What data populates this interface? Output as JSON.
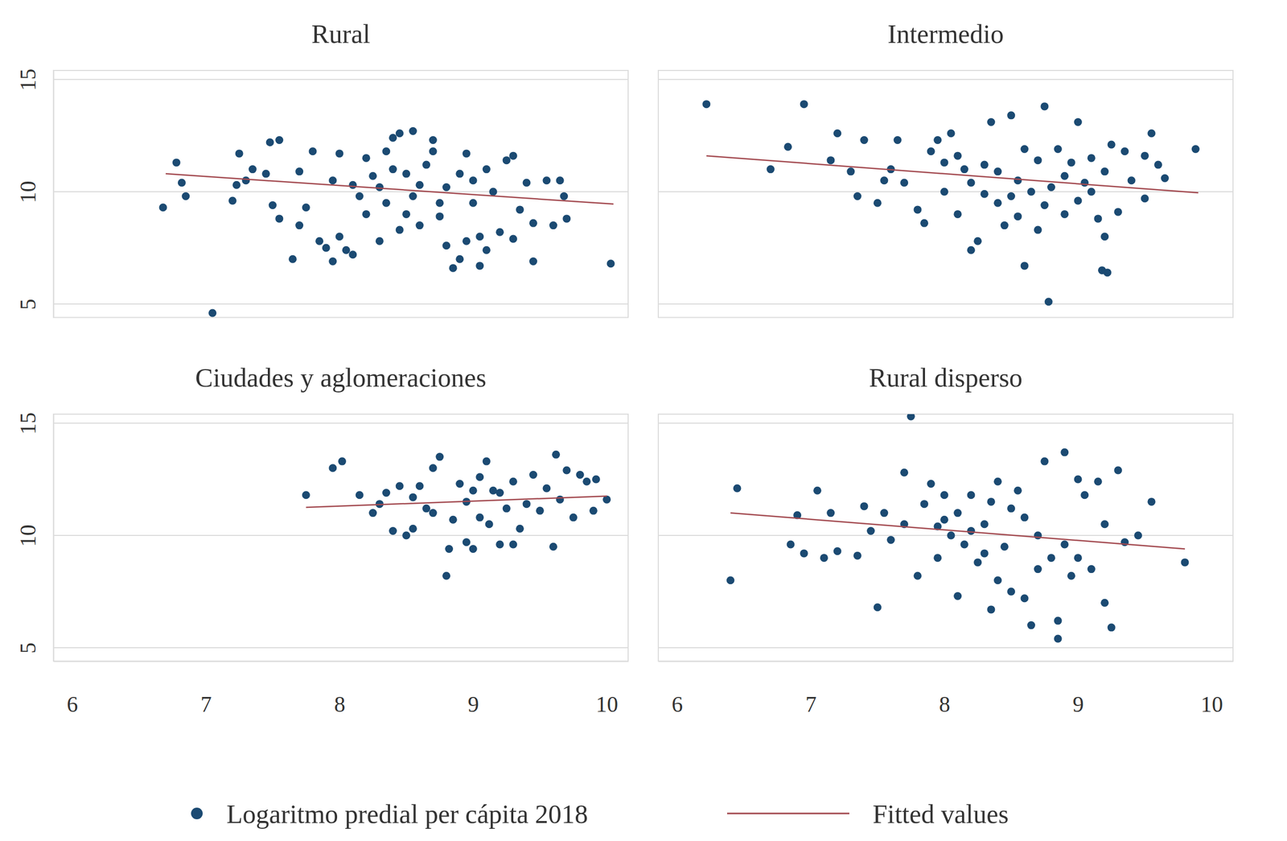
{
  "chart_data": {
    "type": "scatter",
    "grid": true,
    "legend": "bottom",
    "xlim": [
      5.86,
      10.16
    ],
    "xticks": [
      6,
      7,
      8,
      9,
      10
    ],
    "ylim": [
      4.4,
      15.4
    ],
    "yticks": [
      5,
      10,
      15
    ],
    "series": [
      {
        "name": "Logaritmo predial per cápita 2018",
        "color": "#1b4a72",
        "marker": "circle"
      },
      {
        "name": "Fitted values",
        "color": "#a34a50",
        "line_style": "solid"
      }
    ],
    "panels": [
      {
        "title": "Rural",
        "x": [
          6.68,
          6.78,
          6.82,
          6.85,
          7.05,
          7.2,
          7.23,
          7.25,
          7.3,
          7.35,
          7.45,
          7.48,
          7.55,
          7.5,
          7.55,
          7.65,
          7.7,
          7.75,
          7.8,
          7.85,
          7.9,
          7.95,
          8.0,
          8.05,
          8.1,
          8.0,
          8.2,
          8.2,
          8.3,
          8.3,
          8.4,
          8.4,
          8.45,
          8.5,
          8.55,
          8.6,
          8.6,
          8.7,
          8.7,
          8.75,
          8.8,
          8.85,
          8.9,
          8.9,
          8.95,
          9.0,
          9.05,
          9.05,
          9.1,
          9.1,
          9.15,
          9.2,
          9.25,
          9.3,
          9.3,
          9.35,
          9.4,
          9.45,
          9.45,
          9.55,
          9.6,
          9.65,
          9.68,
          9.7,
          10.03,
          8.35,
          8.5,
          8.65,
          8.8,
          8.25,
          7.95,
          8.15,
          8.55,
          8.45,
          8.75,
          9.0,
          8.1,
          7.7,
          8.95,
          8.35
        ],
        "values": [
          9.3,
          11.3,
          10.4,
          9.8,
          4.6,
          9.6,
          10.3,
          11.7,
          10.5,
          11.0,
          10.8,
          12.2,
          12.3,
          9.4,
          8.8,
          7.0,
          8.5,
          9.3,
          11.8,
          7.8,
          7.5,
          6.9,
          8.0,
          7.4,
          7.2,
          11.7,
          9.0,
          11.5,
          10.2,
          7.8,
          11.0,
          12.4,
          12.6,
          9.0,
          12.7,
          10.3,
          8.5,
          11.8,
          12.3,
          9.5,
          7.6,
          6.6,
          7.0,
          10.8,
          7.8,
          9.5,
          6.7,
          8.0,
          11.0,
          7.4,
          10.0,
          8.2,
          11.4,
          11.6,
          7.9,
          9.2,
          10.4,
          6.9,
          8.6,
          10.5,
          8.5,
          10.5,
          9.8,
          8.8,
          6.8,
          9.5,
          10.8,
          11.2,
          10.2,
          10.7,
          10.5,
          9.8,
          9.8,
          8.3,
          8.9,
          10.5,
          10.3,
          10.9,
          11.7,
          11.8
        ],
        "fit_x": [
          6.7,
          10.05
        ],
        "fit_values": [
          10.8,
          9.45
        ]
      },
      {
        "title": "Intermedio",
        "x": [
          6.22,
          6.7,
          6.83,
          6.95,
          7.15,
          7.2,
          7.3,
          7.4,
          7.35,
          7.5,
          7.55,
          7.6,
          7.65,
          7.8,
          7.85,
          7.9,
          7.95,
          8.0,
          8.05,
          8.1,
          8.15,
          8.2,
          8.25,
          8.3,
          8.35,
          8.4,
          8.45,
          8.5,
          8.55,
          8.6,
          8.6,
          8.7,
          8.75,
          8.78,
          8.8,
          8.85,
          8.9,
          8.95,
          9.0,
          9.05,
          9.1,
          9.15,
          9.18,
          9.22,
          9.2,
          9.25,
          9.3,
          9.35,
          9.4,
          9.5,
          9.5,
          9.55,
          9.6,
          9.65,
          9.88,
          8.2,
          8.4,
          8.5,
          8.65,
          8.7,
          8.9,
          8.3,
          8.1,
          9.0,
          9.2,
          7.7,
          8.55,
          8.0,
          8.75,
          9.1
        ],
        "values": [
          13.9,
          11.0,
          12.0,
          13.9,
          11.4,
          12.6,
          10.9,
          12.3,
          9.8,
          9.5,
          10.5,
          11.0,
          12.3,
          9.2,
          8.6,
          11.8,
          12.3,
          10.0,
          12.6,
          9.0,
          11.0,
          7.4,
          7.8,
          11.2,
          13.1,
          9.5,
          8.5,
          13.4,
          10.5,
          6.7,
          11.9,
          8.3,
          13.8,
          5.1,
          10.2,
          11.9,
          9.0,
          11.3,
          13.1,
          10.4,
          11.5,
          8.8,
          6.5,
          6.4,
          8.0,
          12.1,
          9.1,
          11.8,
          10.5,
          9.7,
          11.6,
          12.6,
          11.2,
          10.6,
          11.9,
          10.4,
          10.9,
          9.8,
          10.0,
          11.4,
          10.7,
          9.9,
          11.6,
          9.6,
          10.9,
          10.4,
          8.9,
          11.3,
          9.4,
          10.0
        ],
        "fit_x": [
          6.22,
          9.9
        ],
        "fit_values": [
          11.6,
          9.95
        ]
      },
      {
        "title": "Ciudades y aglomeraciones",
        "x": [
          7.75,
          7.95,
          8.02,
          8.15,
          8.25,
          8.3,
          8.4,
          8.45,
          8.5,
          8.55,
          8.6,
          8.65,
          8.7,
          8.75,
          8.8,
          8.82,
          8.85,
          8.9,
          8.95,
          9.0,
          9.05,
          9.1,
          9.12,
          9.15,
          9.2,
          9.25,
          9.3,
          9.3,
          9.4,
          9.45,
          9.5,
          9.6,
          9.62,
          9.65,
          9.7,
          9.75,
          9.8,
          9.85,
          9.9,
          9.92,
          10.0,
          8.7,
          8.95,
          9.05,
          9.2,
          9.35,
          8.55,
          9.55,
          8.35,
          9.0
        ],
        "values": [
          11.8,
          13.0,
          13.3,
          11.8,
          11.0,
          11.4,
          10.2,
          12.2,
          10.0,
          10.3,
          12.2,
          11.2,
          13.0,
          13.5,
          8.2,
          9.4,
          10.7,
          12.3,
          9.7,
          9.4,
          12.6,
          13.3,
          10.5,
          12.0,
          9.6,
          11.2,
          9.6,
          12.4,
          11.4,
          12.7,
          11.1,
          9.5,
          13.6,
          11.6,
          12.9,
          10.8,
          12.7,
          12.4,
          11.1,
          12.5,
          11.6,
          11.0,
          11.5,
          10.8,
          11.9,
          10.3,
          11.7,
          12.1,
          11.9,
          12.0
        ],
        "fit_x": [
          7.75,
          10.0
        ],
        "fit_values": [
          11.25,
          11.75
        ]
      },
      {
        "title": "Rural disperso",
        "x": [
          6.4,
          6.45,
          6.85,
          6.9,
          6.95,
          7.05,
          7.1,
          7.15,
          7.2,
          7.35,
          7.4,
          7.45,
          7.5,
          7.55,
          7.6,
          7.7,
          7.75,
          7.8,
          7.85,
          7.9,
          7.95,
          8.0,
          8.05,
          8.1,
          8.15,
          8.2,
          8.25,
          8.3,
          8.35,
          8.4,
          8.4,
          8.5,
          8.55,
          8.6,
          8.65,
          8.7,
          8.75,
          8.8,
          8.85,
          8.85,
          8.9,
          8.95,
          9.0,
          9.05,
          9.1,
          9.15,
          9.2,
          9.2,
          9.25,
          9.3,
          9.35,
          9.45,
          9.55,
          9.8,
          8.0,
          8.2,
          8.45,
          8.6,
          8.3,
          8.9,
          8.1,
          7.95,
          8.5,
          8.7,
          9.0,
          7.7,
          8.35
        ],
        "values": [
          8.0,
          12.1,
          9.6,
          10.9,
          9.2,
          12.0,
          9.0,
          11.0,
          9.3,
          9.1,
          11.3,
          10.2,
          6.8,
          11.0,
          9.8,
          12.8,
          15.3,
          8.2,
          11.4,
          12.3,
          9.0,
          11.8,
          10.0,
          7.3,
          9.6,
          11.8,
          8.8,
          10.5,
          6.7,
          8.0,
          12.4,
          7.5,
          12.0,
          7.2,
          6.0,
          10.0,
          13.3,
          9.0,
          6.2,
          5.4,
          13.7,
          8.2,
          12.5,
          11.8,
          8.5,
          12.4,
          10.5,
          7.0,
          5.9,
          12.9,
          9.7,
          10.0,
          11.5,
          8.8,
          10.7,
          10.2,
          9.5,
          10.8,
          9.2,
          9.6,
          11.0,
          10.4,
          11.2,
          8.5,
          9.0,
          10.5,
          11.5
        ],
        "fit_x": [
          6.4,
          9.8
        ],
        "fit_values": [
          11.0,
          9.4
        ]
      }
    ]
  }
}
